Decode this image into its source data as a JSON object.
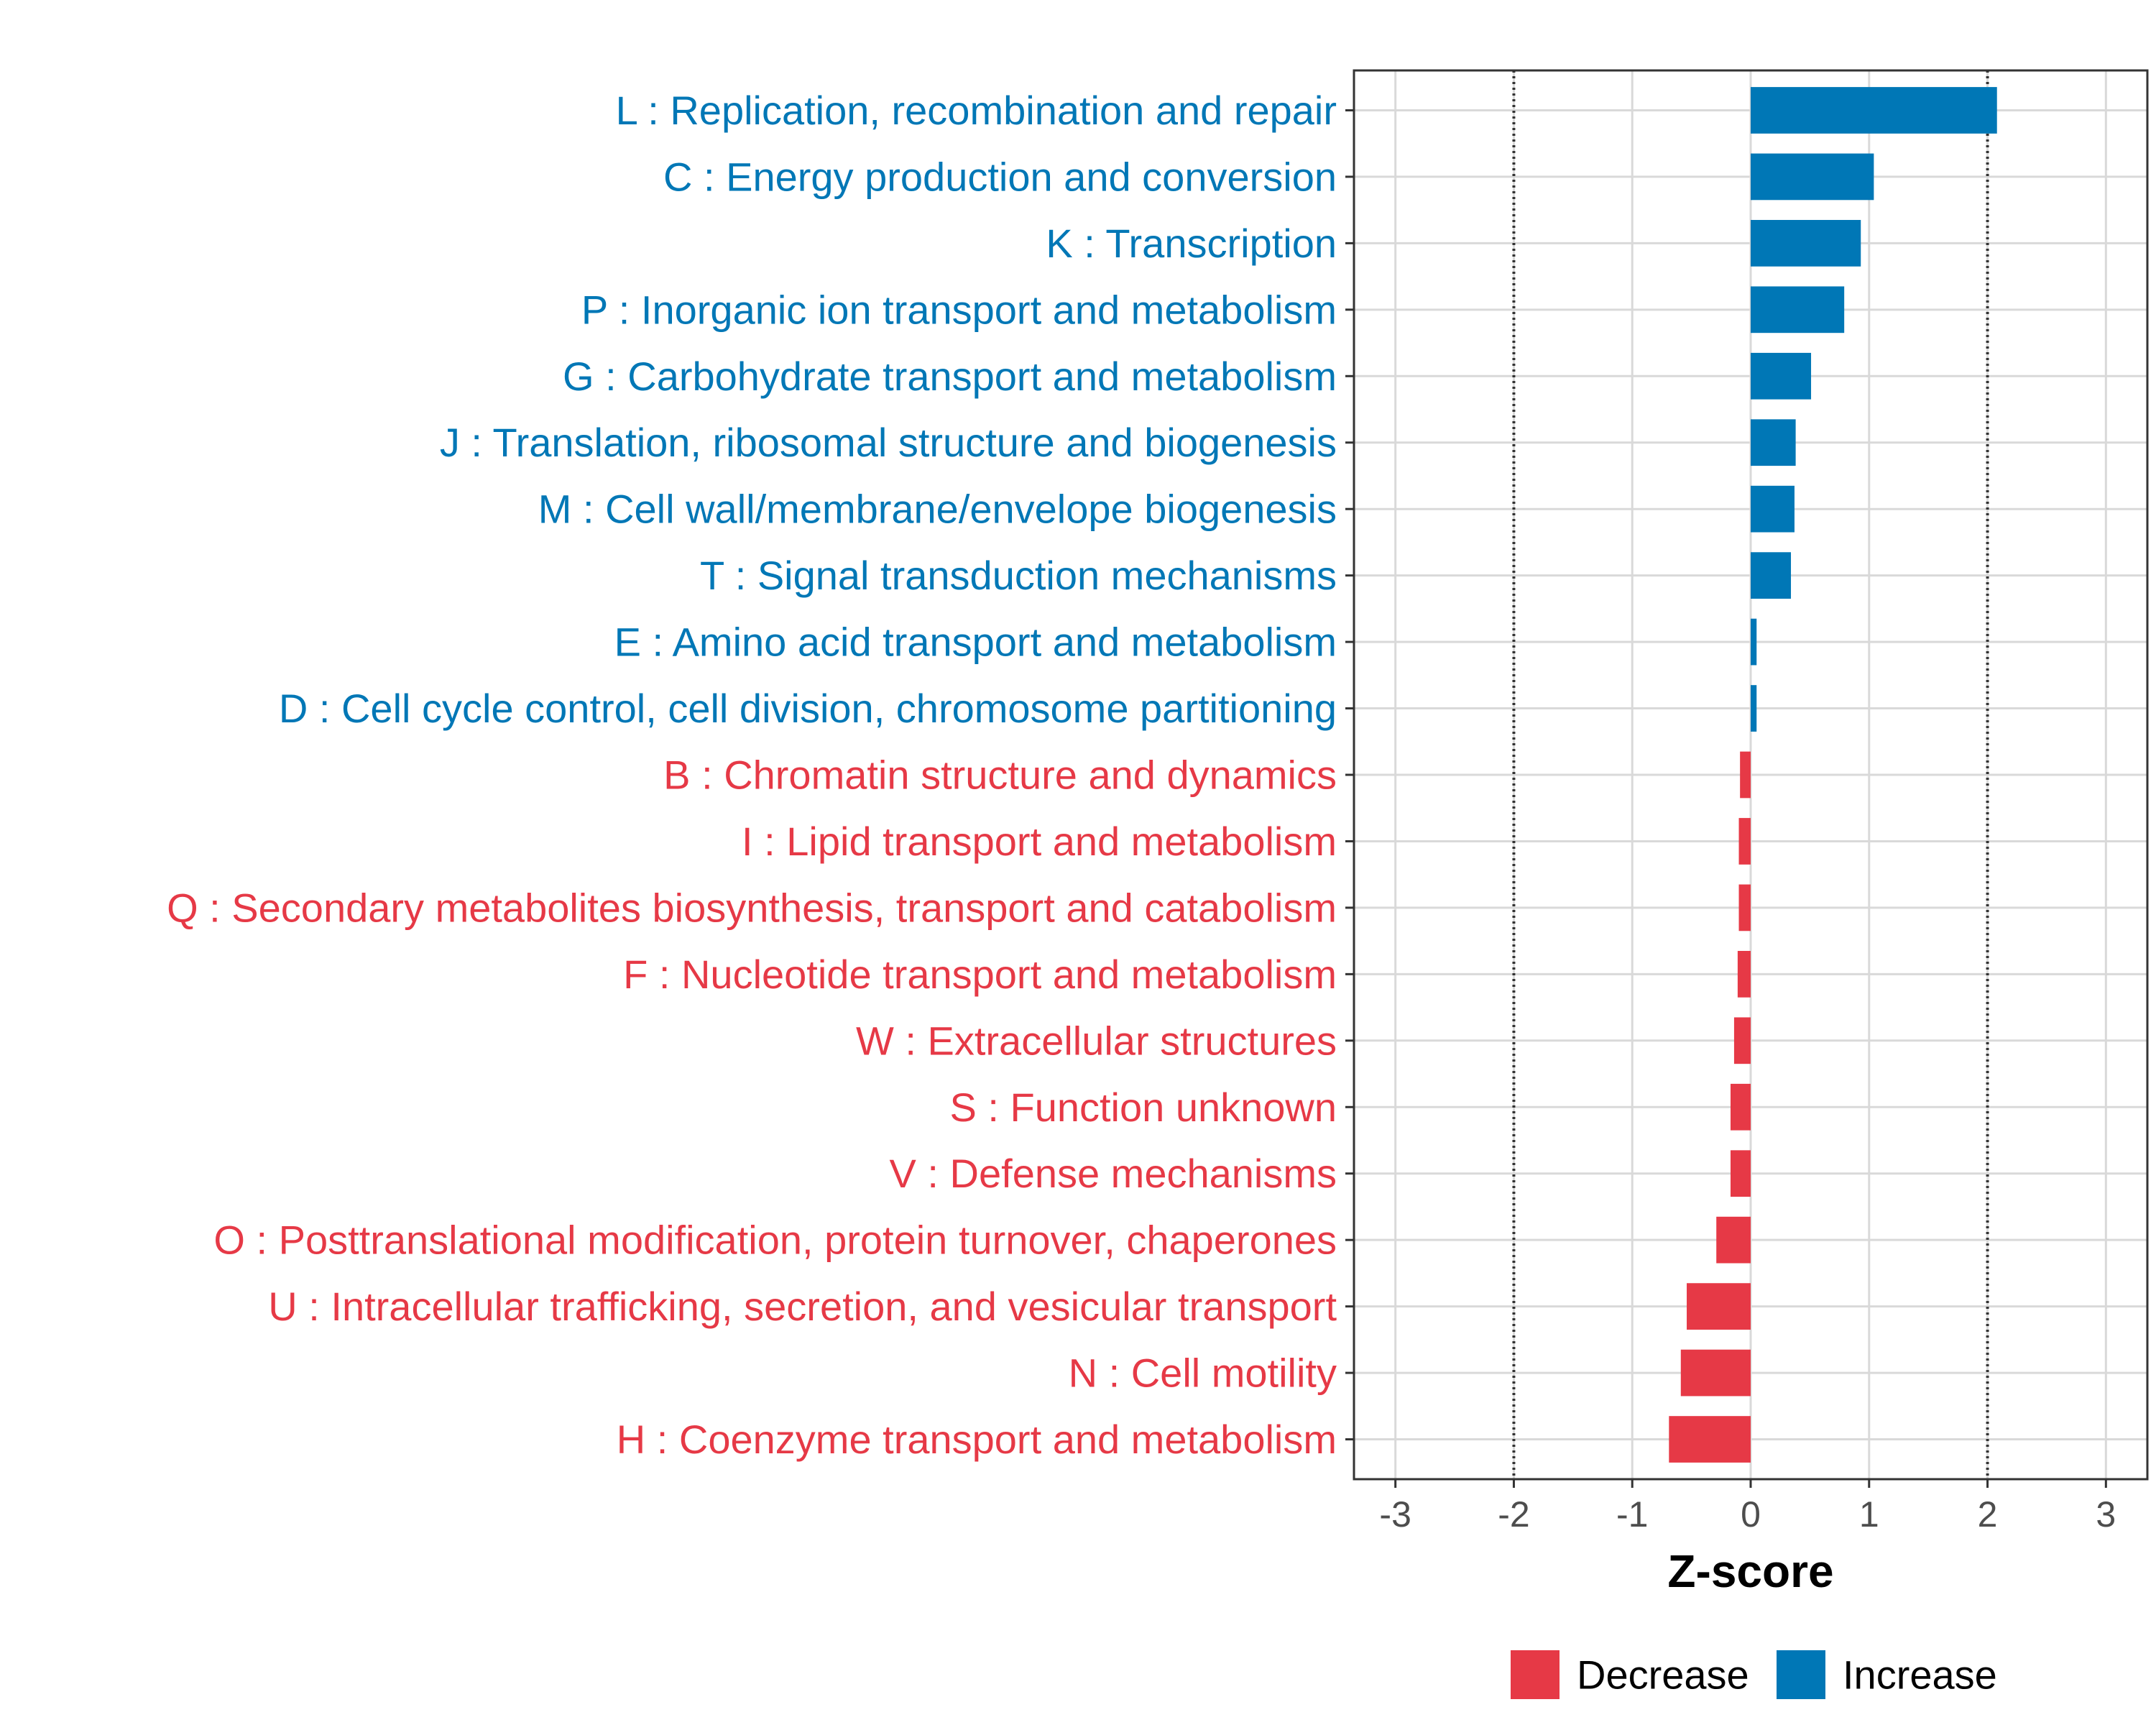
{
  "chart_data": {
    "type": "bar",
    "orientation": "horizontal",
    "xlabel": "Z-score",
    "ylabel": "",
    "xlim": [
      -3.35,
      3.35
    ],
    "xticks": [
      -3,
      -2,
      -1,
      0,
      1,
      2,
      3
    ],
    "xtick_labels": [
      "-3",
      "-2",
      "-1",
      "0",
      "1",
      "2",
      "3"
    ],
    "reference_lines": [
      -2,
      2
    ],
    "grid": true,
    "legend_position": "bottom",
    "colors": {
      "Decrease": "#E63946",
      "Increase": "#0077B6"
    },
    "legend": [
      {
        "name": "Decrease",
        "color": "#E63946"
      },
      {
        "name": "Increase",
        "color": "#0077B6"
      }
    ],
    "categories": [
      "L : Replication, recombination and repair",
      "C : Energy production and conversion",
      "K : Transcription",
      "P : Inorganic ion transport and metabolism",
      "G : Carbohydrate transport and metabolism",
      "J : Translation, ribosomal structure and biogenesis",
      "M : Cell wall/membrane/envelope biogenesis",
      "T : Signal transduction mechanisms",
      "E : Amino acid transport and metabolism",
      "D : Cell cycle control, cell division, chromosome partitioning",
      "B : Chromatin structure and dynamics",
      "I : Lipid transport and metabolism",
      "Q : Secondary metabolites biosynthesis, transport and catabolism",
      "F : Nucleotide transport and metabolism",
      "W : Extracellular structures",
      "S : Function unknown",
      "V : Defense mechanisms",
      "O : Posttranslational modification, protein turnover, chaperones",
      "U : Intracellular trafficking, secretion, and vesicular transport",
      "N : Cell motility",
      "H : Coenzyme transport and metabolism"
    ],
    "values": [
      2.08,
      1.04,
      0.93,
      0.79,
      0.51,
      0.38,
      0.37,
      0.34,
      0.05,
      0.05,
      -0.09,
      -0.1,
      -0.1,
      -0.11,
      -0.14,
      -0.17,
      -0.17,
      -0.29,
      -0.54,
      -0.59,
      -0.69
    ],
    "groups": [
      "Increase",
      "Increase",
      "Increase",
      "Increase",
      "Increase",
      "Increase",
      "Increase",
      "Increase",
      "Increase",
      "Increase",
      "Decrease",
      "Decrease",
      "Decrease",
      "Decrease",
      "Decrease",
      "Decrease",
      "Decrease",
      "Decrease",
      "Decrease",
      "Decrease",
      "Decrease"
    ]
  }
}
